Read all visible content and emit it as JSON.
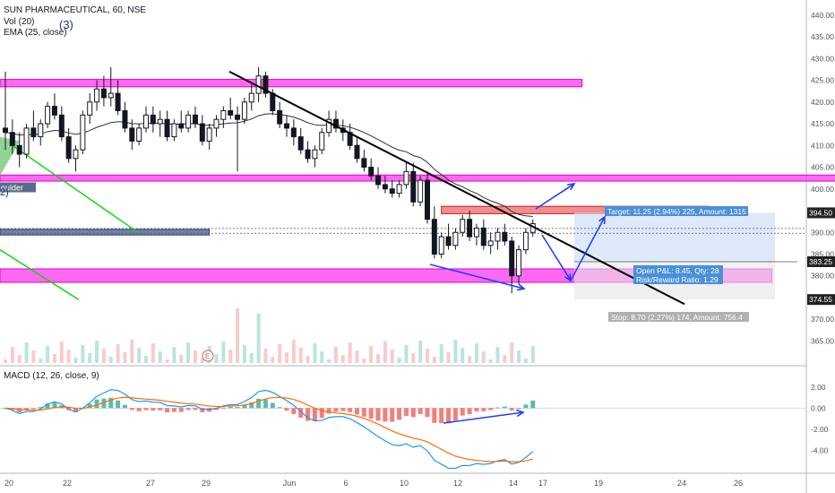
{
  "header": {
    "symbol_line": "SUN PHARMACEUTICAL, 60, NSE",
    "vol_line": "Vol (20)",
    "ema_line": "EMA (25, close)",
    "badge": "(3)",
    "macd_line": "MACD (12, 26, close, 9)"
  },
  "colors": {
    "up": "#26a69a",
    "down": "#ef5350",
    "candle": "#131722",
    "zone_magenta": "#ff00ff",
    "zone_red": "#e05555",
    "trend_line": "#000000",
    "arrow_blue": "#1f3fff",
    "green_line": "#00dd00",
    "macd_line": "#2196f3",
    "signal_line": "#ff6d00",
    "ema_line": "#333333",
    "target_tag": "#4a90d9",
    "stop_tag": "#b0b0b0"
  },
  "chart_data": {
    "type": "candlestick",
    "title": "SUN PHARMACEUTICAL, 60, NSE",
    "price_axis": {
      "ylim": [
        362,
        441
      ],
      "ticks": [
        365,
        370,
        375,
        380,
        385,
        390,
        395,
        400,
        405,
        410,
        415,
        420,
        425,
        430,
        435,
        440
      ]
    },
    "time_axis": {
      "labels": [
        "20",
        "22",
        "27",
        "29",
        "Jun",
        "6",
        "10",
        "12",
        "14",
        "17",
        "19",
        "24",
        "26"
      ]
    },
    "price_tags": [
      {
        "label": "394.50",
        "value": 394.5,
        "style": "dark"
      },
      {
        "label": "383.25",
        "value": 383.25,
        "style": "dark"
      },
      {
        "label": "374.55",
        "value": 374.55,
        "style": "dark"
      }
    ],
    "zones": [
      {
        "name": "resistance-zone-top",
        "from_bar": 0,
        "to_bar": 82,
        "low": 423.5,
        "high": 425.2,
        "color": "magenta"
      },
      {
        "name": "resistance-zone-mid",
        "from_bar": 0,
        "to_bar": 131,
        "low": 401.8,
        "high": 403.2,
        "color": "magenta"
      },
      {
        "name": "supply-zone",
        "from_bar": 62,
        "to_bar": 100,
        "low": 394.3,
        "high": 396.0,
        "color": "red"
      },
      {
        "name": "support-zone",
        "from_bar": 0,
        "to_bar": 109,
        "low": 378.5,
        "high": 381.6,
        "color": "magenta"
      },
      {
        "name": "left-bar-zone",
        "from_bar": 0,
        "to_bar": 29,
        "low": 389.4,
        "high": 390.7,
        "color": "slate"
      }
    ],
    "position": {
      "entry": 383.25,
      "target": 394.5,
      "stop": 374.55,
      "target_label": "Target: 11.25 (2.94%) 225, Amount: 1315",
      "pnl_label": "Open P&L: 8.45, Qty: 28",
      "rr_label": "Risk/Reward Ratio: 1.29",
      "stop_label": "Stop: 8.70 (2.27%) 174, Amount: 756.4"
    },
    "shoulder_label": "oulder",
    "shoulder_number": "2)",
    "earnings_marker": "E",
    "macd": {
      "ylim": [
        -5.5,
        3.0
      ],
      "ticks": [
        2.0,
        0.0,
        -2.0,
        -4.0
      ],
      "tick_labels": [
        "2.00",
        "0.00",
        "-2.00",
        "-4.00"
      ]
    },
    "candles": [
      [
        414,
        427,
        409,
        413
      ],
      [
        413,
        416,
        408,
        410
      ],
      [
        410,
        413,
        405,
        408
      ],
      [
        408,
        415,
        407,
        414
      ],
      [
        414,
        418,
        411,
        412
      ],
      [
        412,
        416,
        410,
        415
      ],
      [
        415,
        420,
        414,
        419
      ],
      [
        419,
        422,
        416,
        417
      ],
      [
        417,
        419,
        411,
        412
      ],
      [
        412,
        414,
        406,
        407
      ],
      [
        407,
        410,
        404,
        409
      ],
      [
        409,
        418,
        408,
        417
      ],
      [
        417,
        422,
        415,
        420
      ],
      [
        420,
        425,
        418,
        423
      ],
      [
        423,
        426,
        419,
        421
      ],
      [
        421,
        428,
        419,
        422
      ],
      [
        422,
        425,
        417,
        418
      ],
      [
        418,
        420,
        413,
        414
      ],
      [
        414,
        416,
        409,
        411
      ],
      [
        411,
        415,
        410,
        414
      ],
      [
        414,
        419,
        413,
        417
      ],
      [
        417,
        419,
        413,
        415
      ],
      [
        415,
        418,
        412,
        416
      ],
      [
        416,
        418,
        411,
        412
      ],
      [
        412,
        416,
        411,
        415
      ],
      [
        415,
        418,
        413,
        414
      ],
      [
        414,
        418,
        413,
        417
      ],
      [
        417,
        419,
        414,
        415
      ],
      [
        415,
        417,
        410,
        411
      ],
      [
        411,
        415,
        409,
        414
      ],
      [
        414,
        417,
        412,
        416
      ],
      [
        416,
        419,
        414,
        418
      ],
      [
        418,
        421,
        416,
        417
      ],
      [
        417,
        419,
        404,
        416
      ],
      [
        416,
        421,
        415,
        420
      ],
      [
        420,
        424,
        418,
        422
      ],
      [
        422,
        428,
        420,
        426
      ],
      [
        426,
        427,
        421,
        422
      ],
      [
        422,
        423,
        417,
        418
      ],
      [
        418,
        420,
        414,
        415
      ],
      [
        415,
        417,
        412,
        414
      ],
      [
        414,
        416,
        410,
        412
      ],
      [
        412,
        414,
        408,
        409
      ],
      [
        409,
        411,
        406,
        407
      ],
      [
        407,
        410,
        405,
        409
      ],
      [
        409,
        414,
        408,
        413
      ],
      [
        413,
        418,
        412,
        416
      ],
      [
        416,
        418,
        413,
        414
      ],
      [
        414,
        416,
        411,
        413
      ],
      [
        413,
        415,
        409,
        410
      ],
      [
        410,
        412,
        406,
        407
      ],
      [
        407,
        409,
        404,
        405
      ],
      [
        405,
        407,
        402,
        403
      ],
      [
        403,
        405,
        400,
        401
      ],
      [
        401,
        403,
        399,
        400
      ],
      [
        400,
        402,
        398,
        399
      ],
      [
        399,
        402,
        398,
        401
      ],
      [
        401,
        406,
        400,
        404
      ],
      [
        404,
        406,
        396,
        397
      ],
      [
        397,
        403,
        396,
        402
      ],
      [
        402,
        404,
        392,
        393
      ],
      [
        393,
        396,
        384,
        385
      ],
      [
        385,
        390,
        384,
        389
      ],
      [
        389,
        392,
        386,
        387
      ],
      [
        387,
        391,
        386,
        390
      ],
      [
        390,
        394,
        389,
        393
      ],
      [
        393,
        395,
        388,
        389
      ],
      [
        389,
        392,
        387,
        391
      ],
      [
        391,
        393,
        386,
        387
      ],
      [
        387,
        390,
        385,
        388
      ],
      [
        388,
        391,
        386,
        390
      ],
      [
        390,
        392,
        387,
        388
      ],
      [
        388,
        389,
        376,
        380
      ],
      [
        380,
        387,
        378,
        386
      ],
      [
        386,
        391,
        385,
        390
      ],
      [
        390,
        393,
        389,
        392
      ]
    ]
  }
}
